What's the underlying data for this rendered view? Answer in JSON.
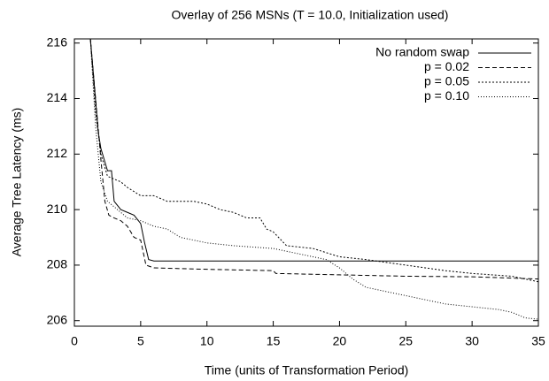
{
  "chart_data": {
    "type": "line",
    "title": "Overlay of 256 MSNs (T = 10.0, Initialization used)",
    "x_label": "Time (units of Transformation Period)",
    "y_label": "Average Tree Latency (ms)",
    "xlim": [
      0,
      35
    ],
    "xticks": [
      0,
      5,
      10,
      15,
      20,
      25,
      30,
      35
    ],
    "ylim": [
      205.8,
      216.15
    ],
    "yticks": [
      206,
      208,
      210,
      212,
      214,
      216
    ],
    "legend": "upper right",
    "series": [
      {
        "name": "No random swap",
        "color": "#000000",
        "dash": "none",
        "x": [
          1.2,
          1.5,
          1.8,
          2,
          2.5,
          2.8,
          3,
          3.5,
          4,
          4.5,
          5,
          5.3,
          5.6,
          6,
          35
        ],
        "values": [
          216.2,
          214.5,
          212.8,
          212.2,
          211.4,
          211.4,
          210.3,
          210,
          209.9,
          209.8,
          209.5,
          208.8,
          208.2,
          208.15,
          208.15
        ]
      },
      {
        "name": "p = 0.02",
        "color": "#000000",
        "dash": "5,3",
        "x": [
          1.2,
          1.6,
          2,
          2.3,
          2.6,
          3,
          3.5,
          4,
          4.5,
          5,
          5.4,
          6,
          10,
          15,
          15.2,
          20,
          25,
          30,
          35
        ],
        "values": [
          216.2,
          214,
          211.8,
          210.3,
          209.8,
          209.7,
          209.6,
          209.4,
          209,
          208.9,
          208,
          207.9,
          207.85,
          207.8,
          207.7,
          207.65,
          207.6,
          207.58,
          207.5
        ]
      },
      {
        "name": "p = 0.05",
        "color": "#000000",
        "dash": "2,2",
        "x": [
          1.2,
          1.6,
          2,
          2.5,
          3,
          3.5,
          4,
          5,
          6,
          7,
          9,
          10,
          11,
          12,
          13,
          14,
          14.5,
          15,
          16,
          18,
          20,
          22,
          25,
          28,
          30,
          33,
          35
        ],
        "values": [
          216.2,
          213.5,
          212,
          211.2,
          211.1,
          211,
          210.8,
          210.5,
          210.5,
          210.3,
          210.3,
          210.2,
          210,
          209.9,
          209.7,
          209.7,
          209.3,
          209.2,
          208.7,
          208.6,
          208.3,
          208.2,
          208,
          207.8,
          207.7,
          207.6,
          207.4
        ]
      },
      {
        "name": "p = 0.10",
        "color": "#000000",
        "dash": "1,2",
        "x": [
          1.2,
          1.6,
          2,
          2.5,
          3,
          3.5,
          4,
          5,
          6,
          7,
          8,
          10,
          12,
          15,
          17,
          19,
          20,
          21,
          22,
          24,
          26,
          28,
          30,
          32,
          33,
          34,
          35
        ],
        "values": [
          216.2,
          213,
          211,
          210.3,
          210.1,
          209.9,
          209.7,
          209.6,
          209.4,
          209.3,
          209,
          208.8,
          208.7,
          208.6,
          208.4,
          208.2,
          207.9,
          207.5,
          207.2,
          207,
          206.8,
          206.6,
          206.5,
          206.4,
          206.3,
          206.1,
          206.05
        ]
      }
    ]
  }
}
